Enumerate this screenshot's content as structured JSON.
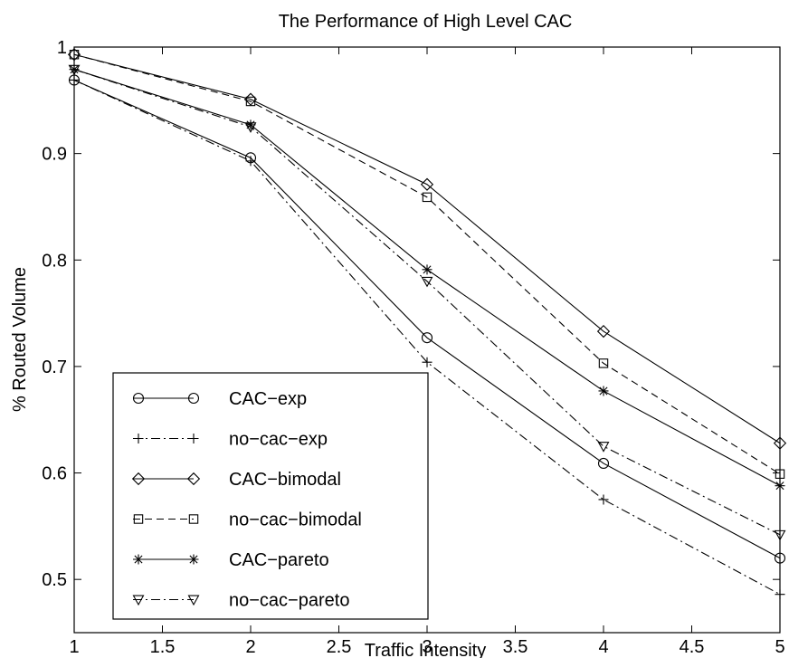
{
  "chart_data": {
    "type": "line",
    "title": "The Performance of High Level CAC",
    "xlabel": "Traffic Intensity",
    "ylabel": "% Routed Volume",
    "xlim": [
      1,
      5
    ],
    "ylim": [
      0.45,
      1.0
    ],
    "xticks": [
      1,
      1.5,
      2,
      2.5,
      3,
      3.5,
      4,
      4.5,
      5
    ],
    "xtick_labels": [
      "1",
      "1.5",
      "2",
      "2.5",
      "3",
      "3.5",
      "4",
      "4.5",
      "5"
    ],
    "yticks": [
      0.5,
      0.6,
      0.7,
      0.8,
      0.9,
      1.0
    ],
    "ytick_labels": [
      "0.5",
      "0.6",
      "0.7",
      "0.8",
      "0.9",
      "1"
    ],
    "grid": false,
    "legend_position": "bottom-left",
    "x": [
      1,
      2,
      3,
      4,
      5
    ],
    "series": [
      {
        "name": "CAC−exp",
        "values": [
          0.969,
          0.896,
          0.727,
          0.609,
          0.52
        ],
        "marker": "circle",
        "line": "solid"
      },
      {
        "name": "no−cac−exp",
        "values": [
          0.969,
          0.893,
          0.704,
          0.575,
          0.486
        ],
        "marker": "plus",
        "line": "dashdot"
      },
      {
        "name": "CAC−bimodal",
        "values": [
          0.993,
          0.951,
          0.871,
          0.733,
          0.628
        ],
        "marker": "diamond",
        "line": "solid"
      },
      {
        "name": "no−cac−bimodal",
        "values": [
          0.993,
          0.949,
          0.859,
          0.703,
          0.599
        ],
        "marker": "square",
        "line": "dashed"
      },
      {
        "name": "CAC−pareto",
        "values": [
          0.979,
          0.927,
          0.791,
          0.677,
          0.588
        ],
        "marker": "star",
        "line": "solid"
      },
      {
        "name": "no−cac−pareto",
        "values": [
          0.979,
          0.925,
          0.78,
          0.625,
          0.542
        ],
        "marker": "triangle-down",
        "line": "dashdot"
      }
    ]
  }
}
